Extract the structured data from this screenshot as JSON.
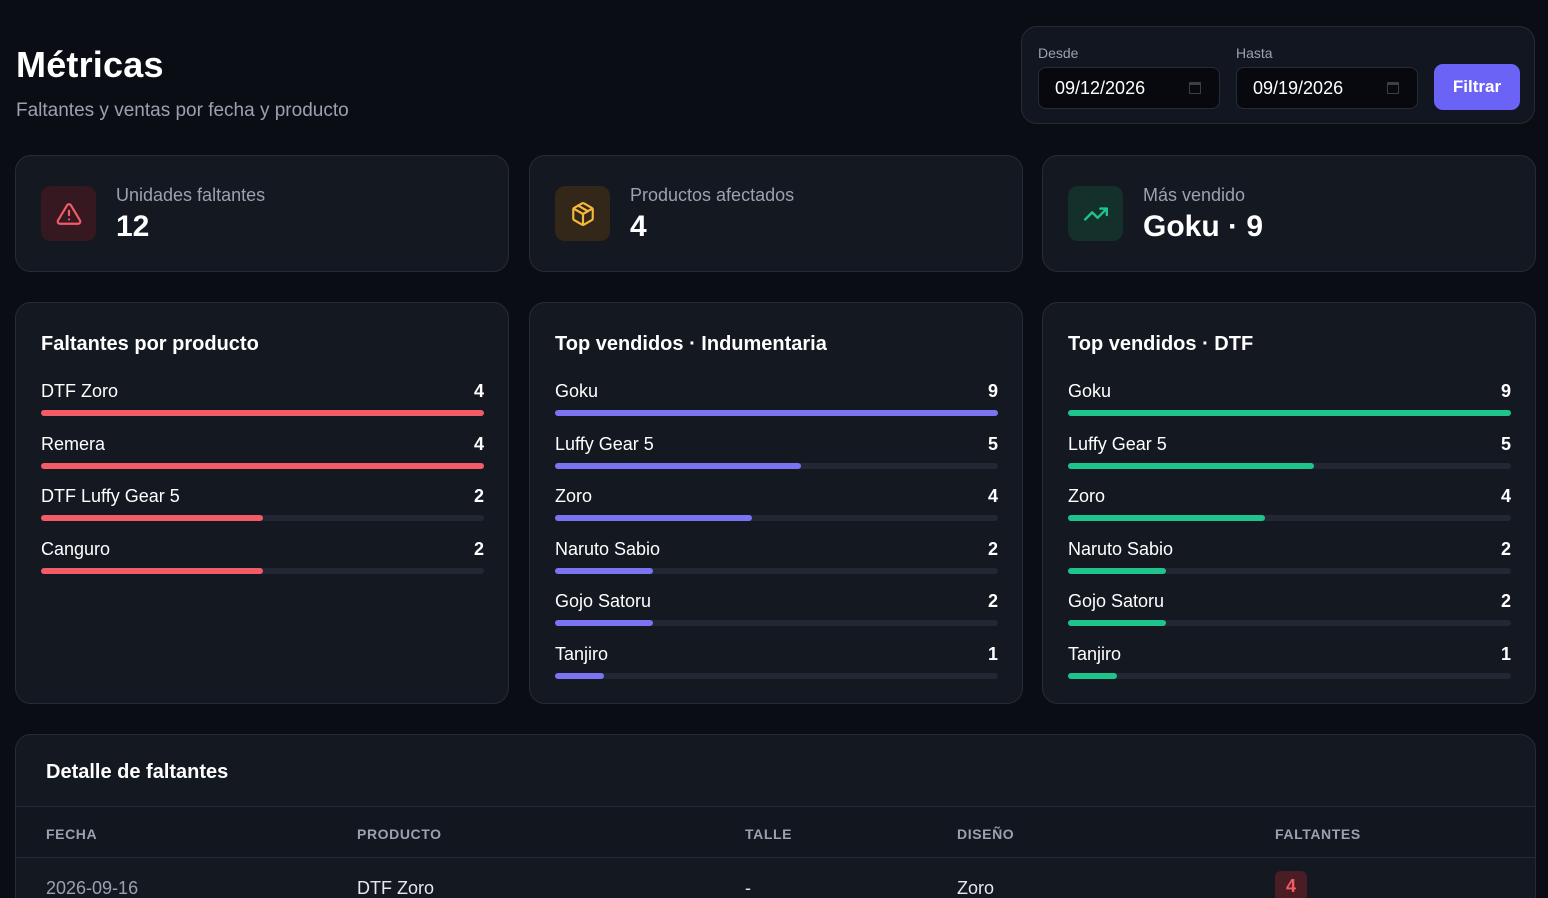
{
  "header": {
    "title": "Métricas",
    "subtitle": "Faltantes y ventas por fecha y producto"
  },
  "filters": {
    "from_label": "Desde",
    "from_value": "09/12/2026",
    "to_label": "Hasta",
    "to_value": "09/19/2026",
    "submit_label": "Filtrar"
  },
  "stats": [
    {
      "label": "Unidades faltantes",
      "value": "12",
      "icon": "alert-triangle-icon",
      "color": "#f35b66",
      "bg": "#351820"
    },
    {
      "label": "Productos afectados",
      "value": "4",
      "icon": "package-icon",
      "color": "#f5b83a",
      "bg": "#33271a"
    },
    {
      "label": "Más vendido",
      "value": "Goku · 9",
      "icon": "trending-up-icon",
      "color": "#1fc48d",
      "bg": "#14302a"
    }
  ],
  "panels": [
    {
      "title": "Faltantes por producto",
      "color": "#f35b66",
      "max": 4,
      "items": [
        {
          "name": "DTF Zoro",
          "count": 4
        },
        {
          "name": "Remera",
          "count": 4
        },
        {
          "name": "DTF Luffy Gear 5",
          "count": 2
        },
        {
          "name": "Canguro",
          "count": 2
        }
      ]
    },
    {
      "title": "Top vendidos · Indumentaria",
      "color": "#7b74f2",
      "max": 9,
      "items": [
        {
          "name": "Goku",
          "count": 9
        },
        {
          "name": "Luffy Gear 5",
          "count": 5
        },
        {
          "name": "Zoro",
          "count": 4
        },
        {
          "name": "Naruto Sabio",
          "count": 2
        },
        {
          "name": "Gojo Satoru",
          "count": 2
        },
        {
          "name": "Tanjiro",
          "count": 1
        }
      ]
    },
    {
      "title": "Top vendidos · DTF",
      "color": "#1fc48d",
      "max": 9,
      "items": [
        {
          "name": "Goku",
          "count": 9
        },
        {
          "name": "Luffy Gear 5",
          "count": 5
        },
        {
          "name": "Zoro",
          "count": 4
        },
        {
          "name": "Naruto Sabio",
          "count": 2
        },
        {
          "name": "Gojo Satoru",
          "count": 2
        },
        {
          "name": "Tanjiro",
          "count": 1
        }
      ]
    }
  ],
  "detail": {
    "title": "Detalle de faltantes",
    "columns": [
      "FECHA",
      "PRODUCTO",
      "TALLE",
      "DISEÑO",
      "FALTANTES"
    ],
    "rows": [
      {
        "fecha": "2026-09-16",
        "producto": "DTF Zoro",
        "talle": "-",
        "diseno": "Zoro",
        "faltantes": "4"
      }
    ]
  }
}
